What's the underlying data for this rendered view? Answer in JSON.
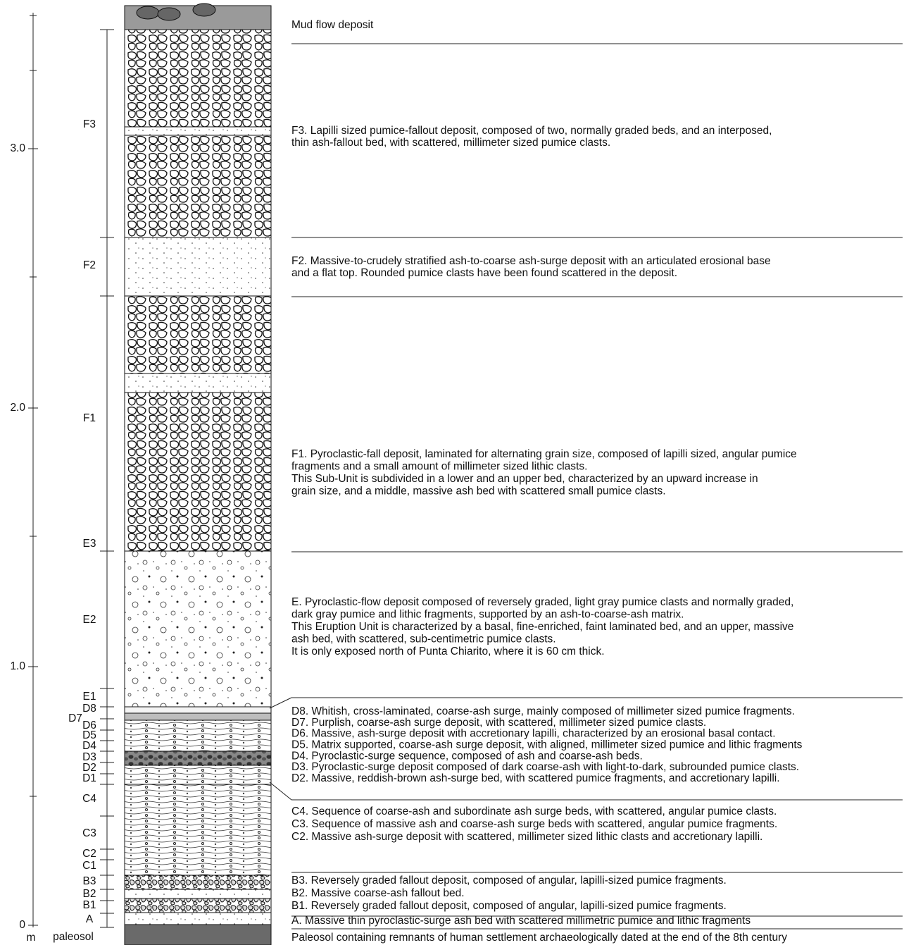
{
  "scale": {
    "unit": "m",
    "ticks": [
      "0",
      "1.0",
      "2.0",
      "3.0"
    ]
  },
  "units": [
    "F3",
    "F2",
    "F1",
    "E3",
    "E2",
    "E1",
    "D8",
    "D7",
    "D6",
    "D5",
    "D4",
    "D3",
    "D2",
    "D1",
    "C4",
    "C3",
    "C2",
    "C1",
    "B3",
    "B2",
    "B1",
    "A",
    "paleosol"
  ],
  "descriptions": [
    [
      "Mud flow deposit"
    ],
    [
      "F3. Lapilli sized pumice-fallout deposit, composed of two, normally graded beds, and an interposed,",
      "thin ash-fallout bed, with scattered, millimeter sized pumice clasts."
    ],
    [
      "F2. Massive-to-crudely stratified ash-to-coarse ash-surge deposit with an articulated erosional base",
      "and a flat top. Rounded pumice clasts have been found scattered in the deposit."
    ],
    [
      "F1. Pyroclastic-fall deposit, laminated for alternating grain size, composed of lapilli sized, angular pumice",
      "fragments and a small amount of millimeter sized lithic clasts.",
      "This  Sub-Unit  is subdivided in a lower and an upper bed, characterized by an upward increase in",
      "grain size, and a middle, massive ash bed with scattered small pumice clasts."
    ],
    [
      "E. Pyroclastic-flow deposit composed of reversely graded, light gray pumice clasts and normally graded,",
      "dark gray pumice and lithic fragments, supported by an ash-to-coarse-ash matrix.",
      "This Eruption Unit  is characterized by a basal, fine-enriched, faint laminated bed, and an upper, massive",
      "ash bed, with scattered, sub-centimetric pumice clasts.",
      "It is only exposed north of Punta Chiarito, where it is 60 cm thick."
    ],
    [
      "D8. Whitish, cross-laminated, coarse-ash surge, mainly composed of millimeter sized pumice fragments.",
      "D7. Purplish, coarse-ash surge deposit, with scattered, millimeter sized pumice clasts.",
      "D6. Massive, ash-surge deposit with accretionary lapilli, characterized by an erosional basal contact.",
      "D5. Matrix supported, coarse-ash surge deposit, with aligned, millimeter sized pumice and lithic fragments",
      "D4. Pyroclastic-surge sequence, composed of ash and coarse-ash beds.",
      "D3. Pyroclastic-surge deposit composed of dark coarse-ash with light-to-dark, subrounded pumice clasts.",
      "D2. Massive, reddish-brown ash-surge bed, with scattered pumice fragments, and accretionary lapilli."
    ],
    [
      "C4. Sequence of coarse-ash and subordinate ash surge beds, with scattered, angular pumice clasts.",
      "C3. Sequence of massive ash and coarse-ash surge beds with scattered, angular pumice fragments.",
      "C2. Massive ash-surge deposit with scattered, millimeter sized lithic clasts and accretionary lapilli."
    ],
    [
      "B3. Reversely graded fallout deposit, composed of angular, lapilli-sized pumice fragments.",
      "B2. Massive coarse-ash fallout bed.",
      "B1. Reversely graded fallout deposit, composed of angular, lapilli-sized pumice fragments."
    ],
    [
      "A. Massive thin pyroclastic-surge ash bed with scattered millimetric pumice and lithic fragments"
    ],
    [
      "Paleosol containing remnants of human settlement archaeologically dated at the end of the 8th century"
    ]
  ]
}
